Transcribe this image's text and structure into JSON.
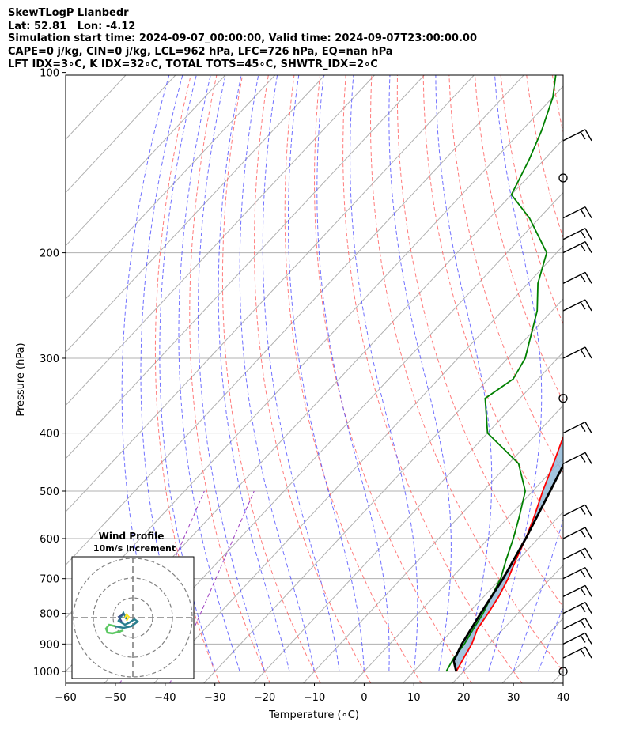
{
  "header": {
    "line1": "SkewTLogP Llanbedr",
    "line2": "Lat: 52.81   Lon: -4.12",
    "line3": "Simulation start time: 2024-09-07_00:00:00, Valid time: 2024-09-07T23:00:00.00",
    "line4": "CAPE=0 j/kg, CIN=0 j/kg, LCL=962 hPa, LFC=726 hPa, EQ=nan hPa",
    "line5": "LFT IDX=3∘C, K IDX=32∘C, TOTAL TOTS=45∘C, SHWTR_IDX=2∘C"
  },
  "chart_data": {
    "type": "skewt",
    "xlabel": "Temperature (∘C)",
    "ylabel": "Pressure (hPa)",
    "xlim": [
      -60,
      40
    ],
    "ylim": [
      1050,
      100
    ],
    "x_ticks": [
      "−60",
      "−50",
      "−40",
      "−30",
      "−20",
      "−10",
      "0",
      "10",
      "20",
      "30",
      "40"
    ],
    "y_ticks": [
      "100",
      "200",
      "300",
      "400",
      "500",
      "600",
      "700",
      "800",
      "900",
      "1000"
    ],
    "grid": true,
    "series": [
      {
        "role": "temperature",
        "color": "#ff0000",
        "points": [
          [
            18.5,
            1000
          ],
          [
            17.5,
            950
          ],
          [
            16.5,
            900
          ],
          [
            14.8,
            850
          ],
          [
            14.0,
            800
          ],
          [
            13.0,
            750
          ],
          [
            11.5,
            700
          ],
          [
            9.5,
            650
          ],
          [
            7.5,
            600
          ],
          [
            5.0,
            550
          ],
          [
            2.0,
            500
          ],
          [
            -1.0,
            450
          ],
          [
            -4.5,
            400
          ],
          [
            -9.5,
            350
          ],
          [
            -14.0,
            300
          ],
          [
            -20.5,
            250
          ],
          [
            -27.0,
            225
          ],
          [
            -34.0,
            200
          ],
          [
            -39.0,
            180
          ],
          [
            -44.5,
            160
          ],
          [
            -49.0,
            150
          ],
          [
            -54.5,
            135
          ],
          [
            -58.0,
            125
          ],
          [
            -62.5,
            110
          ],
          [
            -65.0,
            100
          ]
        ]
      },
      {
        "role": "dewpoint",
        "color": "#008000",
        "points": [
          [
            16.5,
            1000
          ],
          [
            15.5,
            950
          ],
          [
            15.0,
            900
          ],
          [
            14.0,
            850
          ],
          [
            13.0,
            800
          ],
          [
            11.5,
            750
          ],
          [
            10.0,
            700
          ],
          [
            7.5,
            650
          ],
          [
            5.0,
            600
          ],
          [
            2.0,
            550
          ],
          [
            -1.5,
            500
          ],
          [
            -8.0,
            450
          ],
          [
            -20.0,
            400
          ],
          [
            -27.0,
            350
          ],
          [
            -25.0,
            325
          ],
          [
            -26.5,
            300
          ],
          [
            -33.0,
            250
          ],
          [
            -38.0,
            225
          ],
          [
            -42.0,
            200
          ],
          [
            -52.0,
            175
          ],
          [
            -60.0,
            160
          ],
          [
            -63.0,
            140
          ],
          [
            -66.0,
            125
          ],
          [
            -70.0,
            110
          ],
          [
            -74.0,
            100
          ]
        ]
      },
      {
        "role": "parcel",
        "color": "#000000",
        "points": [
          [
            18.5,
            1000
          ],
          [
            16.0,
            960
          ],
          [
            14.5,
            900
          ],
          [
            12.5,
            800
          ],
          [
            10.5,
            700
          ],
          [
            7.5,
            600
          ],
          [
            3.5,
            500
          ],
          [
            -1.5,
            400
          ],
          [
            -8.0,
            300
          ],
          [
            -15.0,
            225
          ],
          [
            -22.0,
            175
          ],
          [
            -30.5,
            130
          ],
          [
            -37.0,
            100
          ]
        ]
      }
    ],
    "wind_barbs": [
      {
        "pressure": 130,
        "type": "barb"
      },
      {
        "pressure": 150,
        "type": "calm"
      },
      {
        "pressure": 175,
        "type": "barb"
      },
      {
        "pressure": 190,
        "type": "barb"
      },
      {
        "pressure": 200,
        "type": "barb"
      },
      {
        "pressure": 225,
        "type": "barb"
      },
      {
        "pressure": 250,
        "type": "barb"
      },
      {
        "pressure": 300,
        "type": "barb"
      },
      {
        "pressure": 350,
        "type": "calm"
      },
      {
        "pressure": 400,
        "type": "barb"
      },
      {
        "pressure": 450,
        "type": "barb"
      },
      {
        "pressure": 550,
        "type": "barb"
      },
      {
        "pressure": 600,
        "type": "barb"
      },
      {
        "pressure": 650,
        "type": "barb"
      },
      {
        "pressure": 700,
        "type": "barb"
      },
      {
        "pressure": 750,
        "type": "barb"
      },
      {
        "pressure": 800,
        "type": "barb"
      },
      {
        "pressure": 850,
        "type": "barb"
      },
      {
        "pressure": 900,
        "type": "barb"
      },
      {
        "pressure": 950,
        "type": "barb"
      },
      {
        "pressure": 1000,
        "type": "calm"
      }
    ],
    "hodograph": {
      "title": "Wind Profile",
      "subtitle": "10m/s increment"
    }
  }
}
